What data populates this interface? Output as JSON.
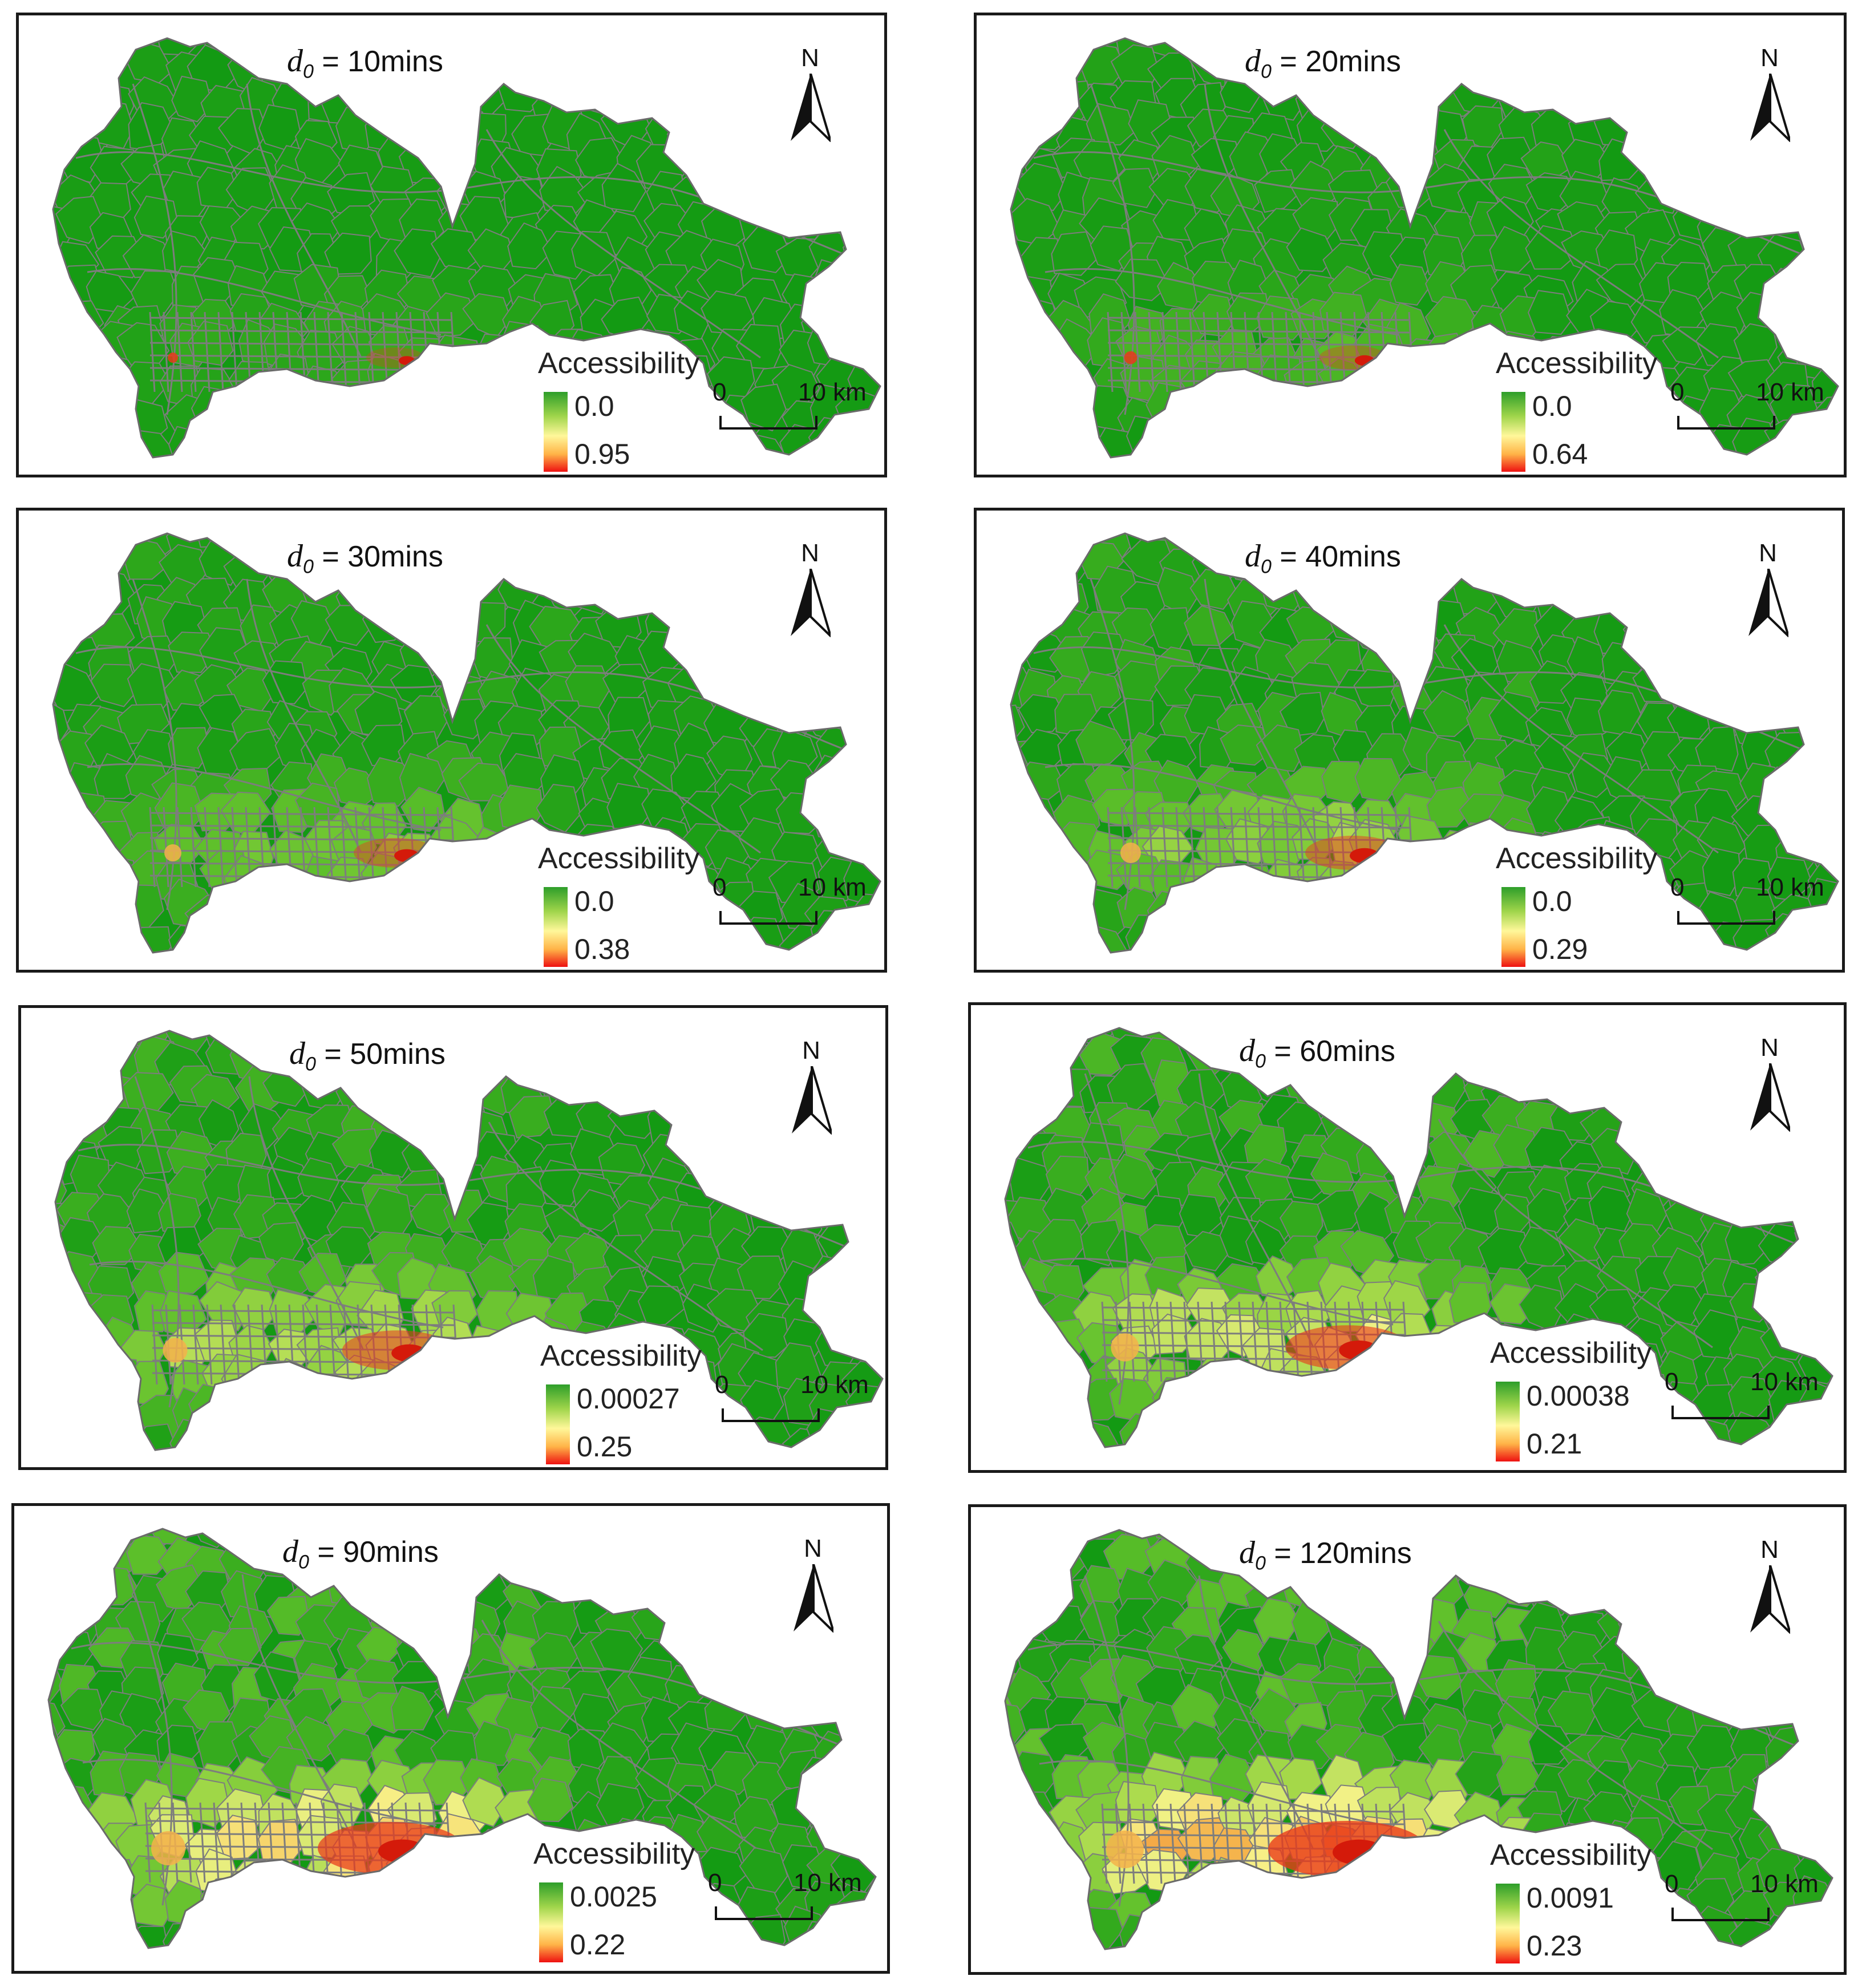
{
  "panels": [
    {
      "title_prefix": "d",
      "title_sub": "0",
      "title_value": "=  10mins",
      "legend_title": "Accessibility",
      "legend_min": "0.0",
      "legend_max": "0.95",
      "north_label": "N",
      "scale_zero": "0",
      "scale_end": "10 km",
      "level": 0.1
    },
    {
      "title_prefix": "d",
      "title_sub": "0",
      "title_value": "=  20mins",
      "legend_title": "Accessibility",
      "legend_min": "0.0",
      "legend_max": "0.64",
      "north_label": "N",
      "scale_zero": "0",
      "scale_end": "10 km",
      "level": 0.18
    },
    {
      "title_prefix": "d",
      "title_sub": "0",
      "title_value": "=  30mins",
      "legend_title": "Accessibility",
      "legend_min": "0.0",
      "legend_max": "0.38",
      "north_label": "N",
      "scale_zero": "0",
      "scale_end": "10 km",
      "level": 0.3
    },
    {
      "title_prefix": "d",
      "title_sub": "0",
      "title_value": "=  40mins",
      "legend_title": "Accessibility",
      "legend_min": "0.0",
      "legend_max": "0.29",
      "north_label": "N",
      "scale_zero": "0",
      "scale_end": "10 km",
      "level": 0.4
    },
    {
      "title_prefix": "d",
      "title_sub": "0",
      "title_value": "=  50mins",
      "legend_title": "Accessibility",
      "legend_min": "0.00027",
      "legend_max": "0.25",
      "north_label": "N",
      "scale_zero": "0",
      "scale_end": "10 km",
      "level": 0.52
    },
    {
      "title_prefix": "d",
      "title_sub": "0",
      "title_value": "=  60mins",
      "legend_title": "Accessibility",
      "legend_min": "0.00038",
      "legend_max": "0.21",
      "north_label": "N",
      "scale_zero": "0",
      "scale_end": "10 km",
      "level": 0.62
    },
    {
      "title_prefix": "d",
      "title_sub": "0",
      "title_value": "=  90mins",
      "legend_title": "Accessibility",
      "legend_min": "0.0025",
      "legend_max": "0.22",
      "north_label": "N",
      "scale_zero": "0",
      "scale_end": "10 km",
      "level": 0.8
    },
    {
      "title_prefix": "d",
      "title_sub": "0",
      "title_value": "=  120mins",
      "legend_title": "Accessibility",
      "legend_min": "0.0091",
      "legend_max": "0.23",
      "north_label": "N",
      "scale_zero": "0",
      "scale_end": "10 km",
      "level": 0.9
    }
  ],
  "colors": {
    "dark_green": "#139a13",
    "mid_green": "#5cbf2a",
    "light_green": "#a6d94a",
    "yellow": "#f7f38a",
    "orange": "#f5b24a",
    "red": "#e93a1a",
    "road": "#7d7d7d",
    "frame": "#1a1a1a"
  }
}
